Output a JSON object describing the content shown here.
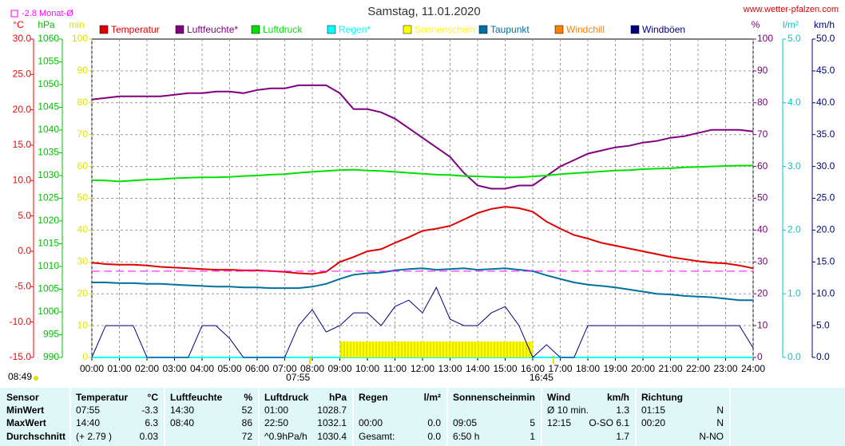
{
  "chart_data": {
    "type": "line",
    "title": "Samstag, 11.01.2020",
    "source": "www.wetter-pfalzen.com",
    "monthly_mean": {
      "value": -2.8,
      "label": "-2.8 Monat-Ø",
      "color": "#ff00ff",
      "axis": "temp"
    },
    "day_length": "08:49",
    "sun_markers": [
      {
        "value": 7.9167,
        "label": "07:55"
      },
      {
        "value": 16.75,
        "label": "16:45"
      }
    ],
    "grid": true,
    "xlim": [
      0,
      24
    ],
    "xticks": [
      {
        "value": 0,
        "label": "00:00"
      },
      {
        "value": 1,
        "label": "01:00"
      },
      {
        "value": 2,
        "label": "02:00"
      },
      {
        "value": 3,
        "label": "03:00"
      },
      {
        "value": 4,
        "label": "04:00"
      },
      {
        "value": 5,
        "label": "05:00"
      },
      {
        "value": 6,
        "label": "06:00"
      },
      {
        "value": 7,
        "label": "07:00"
      },
      {
        "value": 8,
        "label": "08:00"
      },
      {
        "value": 9,
        "label": "09:00"
      },
      {
        "value": 10,
        "label": "10:00"
      },
      {
        "value": 11,
        "label": "11:00"
      },
      {
        "value": 12,
        "label": "12:00"
      },
      {
        "value": 13,
        "label": "13:00"
      },
      {
        "value": 14,
        "label": "14:00"
      },
      {
        "value": 15,
        "label": "15:00"
      },
      {
        "value": 16,
        "label": "16:00"
      },
      {
        "value": 17,
        "label": "17:00"
      },
      {
        "value": 18,
        "label": "18:00"
      },
      {
        "value": 19,
        "label": "19:00"
      },
      {
        "value": 20,
        "label": "20:00"
      },
      {
        "value": 21,
        "label": "21:00"
      },
      {
        "value": 22,
        "label": "22:00"
      },
      {
        "value": 23,
        "label": "23:00"
      },
      {
        "value": 24,
        "label": "24:00"
      }
    ],
    "axes": {
      "temp": {
        "label": "°C",
        "color": "#ff0000",
        "side": "left",
        "lim": [
          -15,
          30
        ],
        "ticks": [
          {
            "value": -15,
            "label": "-15.0"
          },
          {
            "value": -10,
            "label": "-10.0"
          },
          {
            "value": -5,
            "label": "-5.0"
          },
          {
            "value": 0,
            "label": "0.0"
          },
          {
            "value": 5,
            "label": "5.0"
          },
          {
            "value": 10,
            "label": "10.0"
          },
          {
            "value": 15,
            "label": "15.0"
          },
          {
            "value": 20,
            "label": "20.0"
          },
          {
            "value": 25,
            "label": "25.0"
          },
          {
            "value": 30,
            "label": "30.0"
          }
        ]
      },
      "pressure": {
        "label": "hPa",
        "color": "#00c000",
        "side": "left",
        "lim": [
          990,
          1060
        ],
        "ticks": [
          990,
          995,
          1000,
          1005,
          1010,
          1015,
          1020,
          1025,
          1030,
          1035,
          1040,
          1045,
          1050,
          1055,
          1060
        ]
      },
      "min": {
        "label": "min",
        "color": "#e0e000",
        "side": "left",
        "lim": [
          0,
          100
        ],
        "ticks": [
          0,
          10,
          20,
          30,
          40,
          50,
          60,
          70,
          80,
          90,
          100
        ]
      },
      "pct": {
        "label": "%",
        "color": "#800080",
        "side": "right",
        "lim": [
          0,
          100
        ],
        "ticks": [
          0,
          10,
          20,
          30,
          40,
          50,
          60,
          70,
          80,
          90,
          100
        ]
      },
      "rain": {
        "label": "l/m²",
        "color": "#00c8c8",
        "side": "right",
        "lim": [
          0,
          5
        ],
        "ticks": [
          {
            "value": 0,
            "label": "0.0"
          },
          {
            "value": 1,
            "label": "1.0"
          },
          {
            "value": 2,
            "label": "2.0"
          },
          {
            "value": 3,
            "label": "3.0"
          },
          {
            "value": 4,
            "label": "4.0"
          },
          {
            "value": 5,
            "label": "5.0"
          }
        ]
      },
      "wind": {
        "label": "km/h",
        "color": "#000080",
        "side": "right",
        "lim": [
          0,
          50
        ],
        "ticks": [
          {
            "value": 0,
            "label": "0.0"
          },
          {
            "value": 5,
            "label": "5.0"
          },
          {
            "value": 10,
            "label": "10.0"
          },
          {
            "value": 15,
            "label": "15.0"
          },
          {
            "value": 20,
            "label": "20.0"
          },
          {
            "value": 25,
            "label": "25.0"
          },
          {
            "value": 30,
            "label": "30.0"
          },
          {
            "value": 35,
            "label": "35.0"
          },
          {
            "value": 40,
            "label": "40.0"
          },
          {
            "value": 45,
            "label": "45.0"
          },
          {
            "value": 50,
            "label": "50.0"
          }
        ]
      }
    },
    "x": [
      0,
      0.5,
      1,
      1.5,
      2,
      2.5,
      3,
      3.5,
      4,
      4.5,
      5,
      5.5,
      6,
      6.5,
      7,
      7.5,
      8,
      8.5,
      9,
      9.5,
      10,
      10.5,
      11,
      11.5,
      12,
      12.5,
      13,
      13.5,
      14,
      14.5,
      15,
      15.5,
      16,
      16.5,
      17,
      17.5,
      18,
      18.5,
      19,
      19.5,
      20,
      20.5,
      21,
      21.5,
      22,
      22.5,
      23,
      23.5,
      24
    ],
    "series": [
      {
        "name": "Temperatur",
        "color": "#e00000",
        "axis": "temp",
        "values": [
          -1.6,
          -1.8,
          -1.9,
          -1.9,
          -2.0,
          -2.2,
          -2.3,
          -2.4,
          -2.5,
          -2.6,
          -2.6,
          -2.7,
          -2.7,
          -2.8,
          -2.9,
          -3.1,
          -3.2,
          -2.9,
          -1.5,
          -0.8,
          0.0,
          0.3,
          1.2,
          2.0,
          2.9,
          3.2,
          3.6,
          4.5,
          5.4,
          6.0,
          6.3,
          6.1,
          5.6,
          4.2,
          3.2,
          2.3,
          1.8,
          1.2,
          0.8,
          0.4,
          0.0,
          -0.4,
          -0.8,
          -1.1,
          -1.4,
          -1.6,
          -1.7,
          -2.0,
          -2.4
        ]
      },
      {
        "name": "Luftfeuchte*",
        "color": "#800080",
        "axis": "pct",
        "values": [
          81,
          81.5,
          82,
          82,
          82,
          82,
          82.5,
          83,
          83,
          83.5,
          83.5,
          83,
          84,
          84.5,
          84.5,
          85.5,
          85.5,
          85.5,
          83,
          78,
          78,
          77,
          75,
          72,
          69,
          66,
          63,
          58,
          54,
          53,
          53,
          54,
          54,
          57,
          60,
          62,
          64,
          65,
          66,
          66.5,
          67.5,
          68,
          69,
          69.5,
          70.5,
          71.5,
          71.5,
          71.5,
          71
        ]
      },
      {
        "name": "Luftdruck",
        "color": "#00e000",
        "axis": "pressure",
        "values": [
          1029,
          1028.9,
          1028.7,
          1028.9,
          1029.1,
          1029.2,
          1029.4,
          1029.5,
          1029.6,
          1029.6,
          1029.7,
          1029.9,
          1030,
          1030.2,
          1030.3,
          1030.6,
          1030.8,
          1031,
          1031.2,
          1031.3,
          1031.1,
          1031,
          1030.8,
          1030.6,
          1030.4,
          1030.2,
          1030.1,
          1029.9,
          1029.8,
          1029.7,
          1029.6,
          1029.6,
          1029.8,
          1030,
          1030.3,
          1030.5,
          1030.7,
          1030.9,
          1031.1,
          1031.2,
          1031.4,
          1031.5,
          1031.6,
          1031.8,
          1031.9,
          1032,
          1032.1,
          1032.2,
          1032.2
        ]
      },
      {
        "name": "Regen*",
        "color": "#00ffff",
        "axis": "rain",
        "values": [
          0,
          0,
          0,
          0,
          0,
          0,
          0,
          0,
          0,
          0,
          0,
          0,
          0,
          0,
          0,
          0,
          0,
          0,
          0,
          0,
          0,
          0,
          0,
          0,
          0,
          0,
          0,
          0,
          0,
          0,
          0,
          0,
          0,
          0,
          0,
          0,
          0,
          0,
          0,
          0,
          0,
          0,
          0,
          0,
          0,
          0,
          0,
          0,
          0
        ]
      },
      {
        "name": "Sonnenschein",
        "color": "#ffff00",
        "axis": "min",
        "kind": "bar",
        "values": [
          0,
          0,
          0,
          0,
          0,
          0,
          0,
          0,
          0,
          0,
          0,
          0,
          0,
          0,
          0,
          0,
          0,
          0,
          5,
          5,
          5,
          5,
          5,
          5,
          5,
          5,
          5,
          5,
          5,
          5,
          5,
          5,
          0,
          0,
          0,
          0,
          0,
          0,
          0,
          0,
          0,
          0,
          0,
          0,
          0,
          0,
          0,
          0,
          0
        ]
      },
      {
        "name": "Taupunkt",
        "color": "#0070a0",
        "axis": "temp",
        "values": [
          -4.4,
          -4.4,
          -4.5,
          -4.5,
          -4.6,
          -4.6,
          -4.7,
          -4.8,
          -4.9,
          -5.0,
          -5.0,
          -5.1,
          -5.1,
          -5.2,
          -5.2,
          -5.2,
          -5.0,
          -4.6,
          -3.9,
          -3.3,
          -3.1,
          -3.0,
          -2.7,
          -2.5,
          -2.4,
          -2.6,
          -2.5,
          -2.4,
          -2.6,
          -2.5,
          -2.4,
          -2.6,
          -2.8,
          -3.4,
          -3.9,
          -4.4,
          -4.7,
          -4.9,
          -5.1,
          -5.4,
          -5.7,
          -6.0,
          -6.1,
          -6.3,
          -6.4,
          -6.5,
          -6.7,
          -6.9,
          -6.9
        ]
      },
      {
        "name": "Windchill",
        "color": "#ff8000",
        "axis": "temp",
        "values": [
          null,
          null,
          null,
          null,
          null,
          null,
          null,
          null,
          null,
          null,
          null,
          null,
          null,
          null,
          null,
          null,
          null,
          null,
          null,
          null,
          null,
          null,
          null,
          null,
          null,
          null,
          null,
          null,
          null,
          null,
          null,
          null,
          null,
          null,
          null,
          null,
          null,
          null,
          null,
          null,
          null,
          null,
          null,
          null,
          null,
          null,
          null,
          null,
          null
        ]
      },
      {
        "name": "Windböen",
        "color": "#000080",
        "axis": "wind",
        "values": [
          0,
          5,
          5,
          5,
          0,
          0,
          0,
          0,
          5,
          5,
          3,
          0,
          0,
          0,
          0,
          5,
          7.5,
          4,
          5,
          7,
          7,
          5,
          8,
          9,
          7,
          11,
          6,
          5,
          5,
          7,
          8,
          5,
          0,
          2,
          0,
          0,
          5,
          5,
          5,
          5,
          5,
          5,
          5,
          5,
          5,
          5,
          5,
          5,
          1.5
        ]
      }
    ]
  },
  "table": {
    "sensor_header": "Sensor",
    "columns": [
      {
        "title": "Temperatur",
        "unit": "°C"
      },
      {
        "title": "Luftfeuchte",
        "unit": "%"
      },
      {
        "title": "Luftdruck",
        "unit": "hPa"
      },
      {
        "title": "Regen",
        "unit": "l/m²"
      },
      {
        "title": "Sonnenschein",
        "unit": "min"
      },
      {
        "title": "Wind",
        "unit": "km/h"
      },
      {
        "title": "Richtung"
      }
    ],
    "rows": [
      {
        "label": "MinWert",
        "cells": [
          [
            "07:55",
            "-3.3"
          ],
          [
            "14:30",
            "52"
          ],
          [
            "01:00",
            "1028.7"
          ],
          [
            null,
            null
          ],
          [
            null,
            null
          ],
          [
            "Ø 10 min.",
            "1.3"
          ],
          [
            "01:15",
            "N"
          ]
        ]
      },
      {
        "label": "MaxWert",
        "cells": [
          [
            "14:40",
            "6.3"
          ],
          [
            "08:40",
            "86"
          ],
          [
            "22:50",
            "1032.1"
          ],
          [
            "00:00",
            "0.0"
          ],
          [
            "09:05",
            "5"
          ],
          [
            "12:15",
            "O-SO 6.1"
          ],
          [
            "00:20",
            "N"
          ]
        ]
      },
      {
        "label": "Durchschnitt",
        "cells": [
          [
            "(+ 2.79 )",
            "0.03"
          ],
          [
            null,
            "72"
          ],
          [
            "^0.9hPa/h",
            "1030.4"
          ],
          [
            "Gesamt:",
            "0.0"
          ],
          [
            "6:50 h",
            "1"
          ],
          [
            null,
            "1.7"
          ],
          [
            null,
            "N-NO"
          ]
        ]
      }
    ]
  }
}
